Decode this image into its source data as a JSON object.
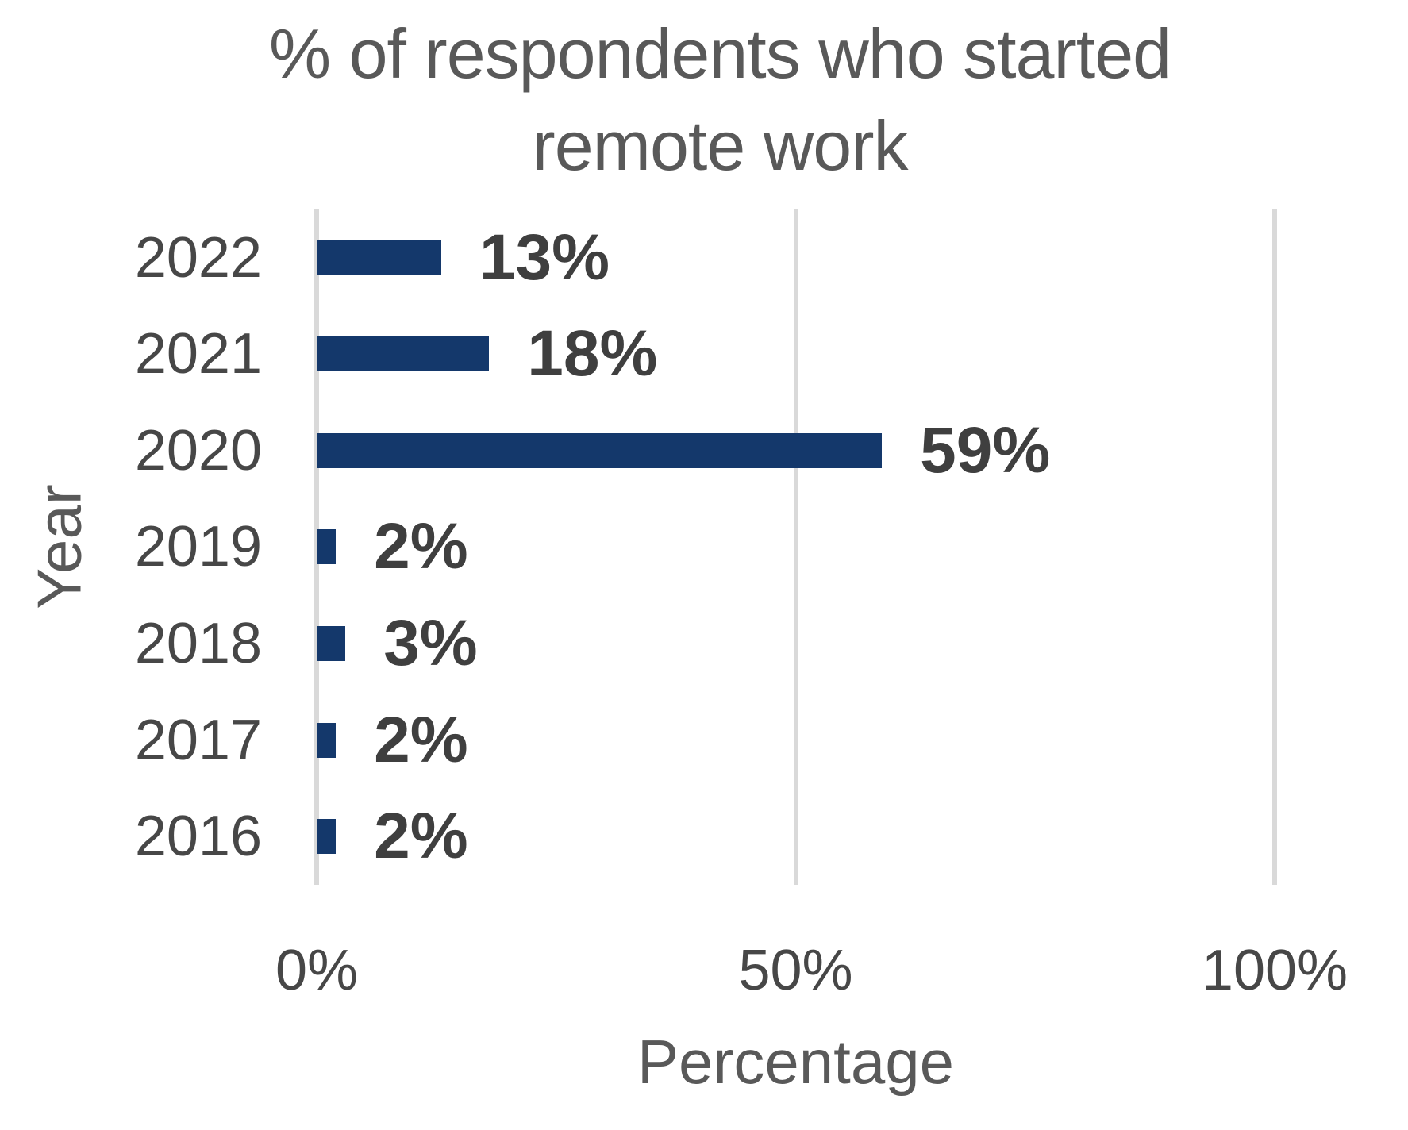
{
  "chart_data": {
    "type": "bar",
    "orientation": "horizontal",
    "title": "% of respondents who started remote work",
    "categories": [
      "2022",
      "2021",
      "2020",
      "2019",
      "2018",
      "2017",
      "2016"
    ],
    "values": [
      13,
      18,
      59,
      2,
      3,
      2,
      2
    ],
    "data_labels": [
      "13%",
      "18%",
      "59%",
      "2%",
      "3%",
      "2%",
      "2%"
    ],
    "xlabel": "Percentage",
    "ylabel": "Year",
    "xticks": [
      {
        "label": "0%",
        "value": 0
      },
      {
        "label": "50%",
        "value": 50
      },
      {
        "label": "100%",
        "value": 100
      }
    ],
    "xlim": [
      0,
      100
    ],
    "grid": true,
    "legend": false,
    "colors": {
      "bar": "#14386B",
      "gridline": "#D9D9D9",
      "title": "#595959",
      "tick_labels": "#474747",
      "data_labels": "#3F3F3F"
    }
  }
}
